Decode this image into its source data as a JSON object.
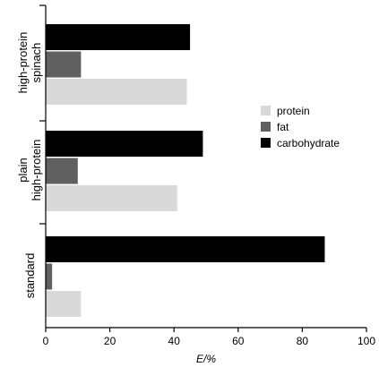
{
  "chart_data": {
    "type": "bar",
    "orientation": "horizontal",
    "xlabel": "E/%",
    "xlim": [
      0,
      100
    ],
    "xticks": [
      0,
      20,
      40,
      60,
      80,
      100
    ],
    "groups": [
      {
        "label_lines": [
          "high-protein",
          "spinach"
        ],
        "values": {
          "carbohydrate": 45,
          "fat": 11,
          "protein": 44
        }
      },
      {
        "label_lines": [
          "plain",
          "high-protein"
        ],
        "values": {
          "carbohydrate": 49,
          "fat": 10,
          "protein": 41
        }
      },
      {
        "label_lines": [
          "standard"
        ],
        "values": {
          "carbohydrate": 87,
          "fat": 2,
          "protein": 11
        }
      }
    ],
    "series": [
      {
        "name": "protein",
        "color": "#d9d9d9"
      },
      {
        "name": "fat",
        "color": "#606060"
      },
      {
        "name": "carbohydrate",
        "color": "#000000"
      }
    ],
    "legend_position": "right"
  }
}
